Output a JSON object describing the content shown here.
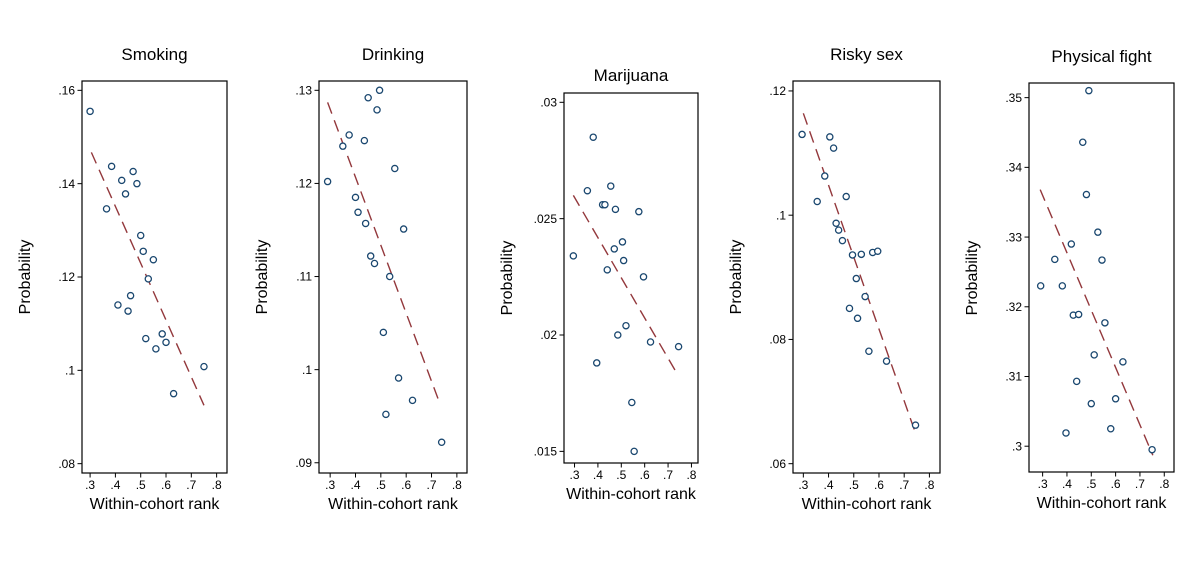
{
  "figure": {
    "background": "#ffffff",
    "axis_color": "#000000",
    "text_color": "#000000",
    "marker_color": "#1a476f",
    "trend_color": "#93383c"
  },
  "chart_data": [
    {
      "type": "scatter",
      "title": "Smoking",
      "xlabel": "Within-cohort rank",
      "ylabel": "Probability",
      "xlim": [
        0.268,
        0.841
      ],
      "ylim": [
        0.078,
        0.162
      ],
      "grid": false,
      "xticks": [
        0.3,
        0.4,
        0.5,
        0.6,
        0.7,
        0.8
      ],
      "xtick_labels": [
        ".3",
        ".4",
        ".5",
        ".6",
        ".7",
        ".8"
      ],
      "yticks": [
        0.08,
        0.1,
        0.12,
        0.14,
        0.16
      ],
      "ytick_labels": [
        ".08",
        ".1",
        ".12",
        ".14",
        ".16"
      ],
      "trend_line": {
        "style": "dashed",
        "x1": 0.305,
        "y1": 0.1467,
        "x2": 0.75,
        "y2": 0.0925
      },
      "points": [
        [
          0.3,
          0.1555
        ],
        [
          0.385,
          0.1437
        ],
        [
          0.47,
          0.1426
        ],
        [
          0.425,
          0.1407
        ],
        [
          0.485,
          0.14
        ],
        [
          0.44,
          0.1378
        ],
        [
          0.365,
          0.1346
        ],
        [
          0.5,
          0.1289
        ],
        [
          0.51,
          0.1255
        ],
        [
          0.55,
          0.1237
        ],
        [
          0.53,
          0.1196
        ],
        [
          0.46,
          0.116
        ],
        [
          0.41,
          0.114
        ],
        [
          0.45,
          0.1127
        ],
        [
          0.585,
          0.1078
        ],
        [
          0.52,
          0.1068
        ],
        [
          0.6,
          0.106
        ],
        [
          0.56,
          0.1046
        ],
        [
          0.75,
          0.1008
        ],
        [
          0.63,
          0.095
        ]
      ]
    },
    {
      "type": "scatter",
      "title": "Drinking",
      "xlabel": "Within-cohort rank",
      "ylabel": "Probability",
      "xlim": [
        0.256,
        0.84
      ],
      "ylim": [
        0.0889,
        0.131
      ],
      "grid": false,
      "xticks": [
        0.3,
        0.4,
        0.5,
        0.6,
        0.7,
        0.8
      ],
      "xtick_labels": [
        ".3",
        ".4",
        ".5",
        ".6",
        ".7",
        ".8"
      ],
      "yticks": [
        0.09,
        0.1,
        0.11,
        0.12,
        0.13
      ],
      "ytick_labels": [
        ".09",
        ".1",
        ".11",
        ".12",
        ".13"
      ],
      "trend_line": {
        "style": "dashed",
        "x1": 0.29,
        "y1": 0.1287,
        "x2": 0.735,
        "y2": 0.0962
      },
      "points": [
        [
          0.495,
          0.13
        ],
        [
          0.45,
          0.1292
        ],
        [
          0.485,
          0.1279
        ],
        [
          0.375,
          0.1252
        ],
        [
          0.435,
          0.1246
        ],
        [
          0.35,
          0.124
        ],
        [
          0.555,
          0.1216
        ],
        [
          0.29,
          0.1202
        ],
        [
          0.4,
          0.1185
        ],
        [
          0.41,
          0.1169
        ],
        [
          0.44,
          0.1157
        ],
        [
          0.59,
          0.1151
        ],
        [
          0.46,
          0.1122
        ],
        [
          0.475,
          0.1114
        ],
        [
          0.535,
          0.11
        ],
        [
          0.51,
          0.104
        ],
        [
          0.57,
          0.0991
        ],
        [
          0.625,
          0.0967
        ],
        [
          0.52,
          0.0952
        ],
        [
          0.74,
          0.0922
        ]
      ]
    },
    {
      "type": "scatter",
      "title": "Marijuana",
      "xlabel": "Within-cohort rank",
      "ylabel": "Probability",
      "xlim": [
        0.255,
        0.828
      ],
      "ylim": [
        0.0145,
        0.0304
      ],
      "grid": false,
      "xticks": [
        0.3,
        0.4,
        0.5,
        0.6,
        0.7,
        0.8
      ],
      "xtick_labels": [
        ".3",
        ".4",
        ".5",
        ".6",
        ".7",
        ".8"
      ],
      "yticks": [
        0.015,
        0.02,
        0.025,
        0.03
      ],
      "ytick_labels": [
        ".015",
        ".02",
        ".025",
        ".03"
      ],
      "trend_line": {
        "style": "dashed",
        "x1": 0.295,
        "y1": 0.026,
        "x2": 0.735,
        "y2": 0.0184
      },
      "points": [
        [
          0.38,
          0.0285
        ],
        [
          0.455,
          0.0264
        ],
        [
          0.355,
          0.0262
        ],
        [
          0.42,
          0.0256
        ],
        [
          0.43,
          0.0256
        ],
        [
          0.475,
          0.0254
        ],
        [
          0.575,
          0.0253
        ],
        [
          0.505,
          0.024
        ],
        [
          0.47,
          0.0237
        ],
        [
          0.295,
          0.0234
        ],
        [
          0.51,
          0.0232
        ],
        [
          0.44,
          0.0228
        ],
        [
          0.595,
          0.0225
        ],
        [
          0.52,
          0.0204
        ],
        [
          0.485,
          0.02
        ],
        [
          0.625,
          0.0197
        ],
        [
          0.745,
          0.0195
        ],
        [
          0.395,
          0.0188
        ],
        [
          0.545,
          0.0171
        ],
        [
          0.555,
          0.015
        ]
      ]
    },
    {
      "type": "scatter",
      "title": "Risky sex",
      "xlabel": "Within-cohort rank",
      "ylabel": "Probability",
      "xlim": [
        0.259,
        0.842
      ],
      "ylim": [
        0.0585,
        0.1216
      ],
      "grid": false,
      "xticks": [
        0.3,
        0.4,
        0.5,
        0.6,
        0.7,
        0.8
      ],
      "xtick_labels": [
        ".3",
        ".4",
        ".5",
        ".6",
        ".7",
        ".8"
      ],
      "yticks": [
        0.06,
        0.08,
        0.1,
        0.12
      ],
      "ytick_labels": [
        ".06",
        ".08",
        ".1",
        ".12"
      ],
      "trend_line": {
        "style": "dashed",
        "x1": 0.3,
        "y1": 0.1164,
        "x2": 0.745,
        "y2": 0.0649
      },
      "points": [
        [
          0.295,
          0.113
        ],
        [
          0.405,
          0.1126
        ],
        [
          0.42,
          0.1108
        ],
        [
          0.385,
          0.1063
        ],
        [
          0.47,
          0.103
        ],
        [
          0.355,
          0.1022
        ],
        [
          0.43,
          0.0987
        ],
        [
          0.44,
          0.0976
        ],
        [
          0.455,
          0.0959
        ],
        [
          0.495,
          0.0936
        ],
        [
          0.53,
          0.0937
        ],
        [
          0.575,
          0.094
        ],
        [
          0.595,
          0.0942
        ],
        [
          0.51,
          0.0898
        ],
        [
          0.545,
          0.0869
        ],
        [
          0.483,
          0.085
        ],
        [
          0.515,
          0.0834
        ],
        [
          0.56,
          0.0781
        ],
        [
          0.63,
          0.0765
        ],
        [
          0.745,
          0.0662
        ]
      ]
    },
    {
      "type": "scatter",
      "title": "Physical fight",
      "xlabel": "Within-cohort rank",
      "ylabel": "Probability",
      "xlim": [
        0.244,
        0.84
      ],
      "ylim": [
        0.2963,
        0.3521
      ],
      "grid": false,
      "xticks": [
        0.3,
        0.4,
        0.5,
        0.6,
        0.7,
        0.8
      ],
      "xtick_labels": [
        ".3",
        ".4",
        ".5",
        ".6",
        ".7",
        ".8"
      ],
      "yticks": [
        0.3,
        0.31,
        0.32,
        0.33,
        0.34,
        0.35
      ],
      "ytick_labels": [
        ".3",
        ".31",
        ".32",
        ".33",
        ".34",
        ".35"
      ],
      "trend_line": {
        "style": "dashed",
        "x1": 0.29,
        "y1": 0.3368,
        "x2": 0.753,
        "y2": 0.2987
      },
      "points": [
        [
          0.49,
          0.351
        ],
        [
          0.465,
          0.3436
        ],
        [
          0.48,
          0.3361
        ],
        [
          0.527,
          0.3307
        ],
        [
          0.418,
          0.329
        ],
        [
          0.35,
          0.3268
        ],
        [
          0.544,
          0.3267
        ],
        [
          0.292,
          0.323
        ],
        [
          0.381,
          0.323
        ],
        [
          0.426,
          0.3188
        ],
        [
          0.448,
          0.3189
        ],
        [
          0.556,
          0.3177
        ],
        [
          0.512,
          0.3131
        ],
        [
          0.63,
          0.3121
        ],
        [
          0.44,
          0.3093
        ],
        [
          0.5,
          0.3061
        ],
        [
          0.6,
          0.3068
        ],
        [
          0.396,
          0.3019
        ],
        [
          0.58,
          0.3025
        ],
        [
          0.75,
          0.2995
        ]
      ]
    }
  ]
}
